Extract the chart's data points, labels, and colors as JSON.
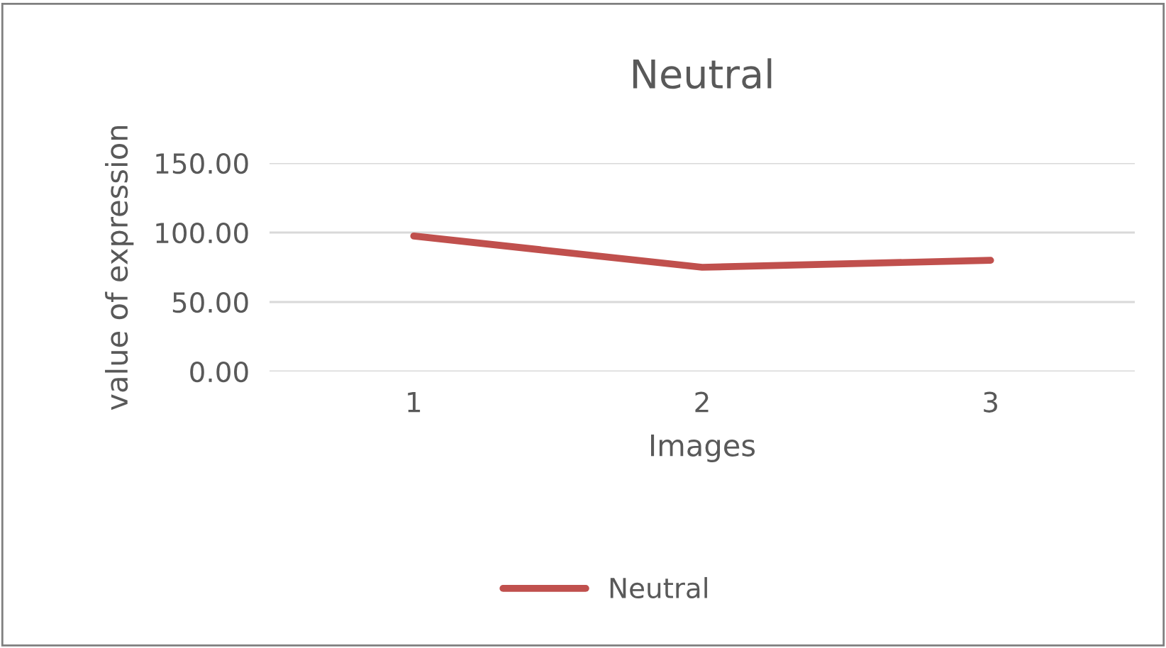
{
  "chart_data": {
    "type": "line",
    "title": "Neutral",
    "xlabel": "Images",
    "ylabel": "value of expression",
    "categories": [
      "1",
      "2",
      "3"
    ],
    "series": [
      {
        "name": "Neutral",
        "color": "#c0504d",
        "values": [
          97.5,
          75,
          80
        ]
      }
    ],
    "ylim": [
      0,
      150
    ],
    "yticks": [
      {
        "value": 0,
        "label": "0.00"
      },
      {
        "value": 50,
        "label": "50.00"
      },
      {
        "value": 100,
        "label": "100.00"
      },
      {
        "value": 150,
        "label": "150.00"
      }
    ],
    "grid": "y",
    "legend": "bottom",
    "marker": "none",
    "line_style": "solid"
  }
}
